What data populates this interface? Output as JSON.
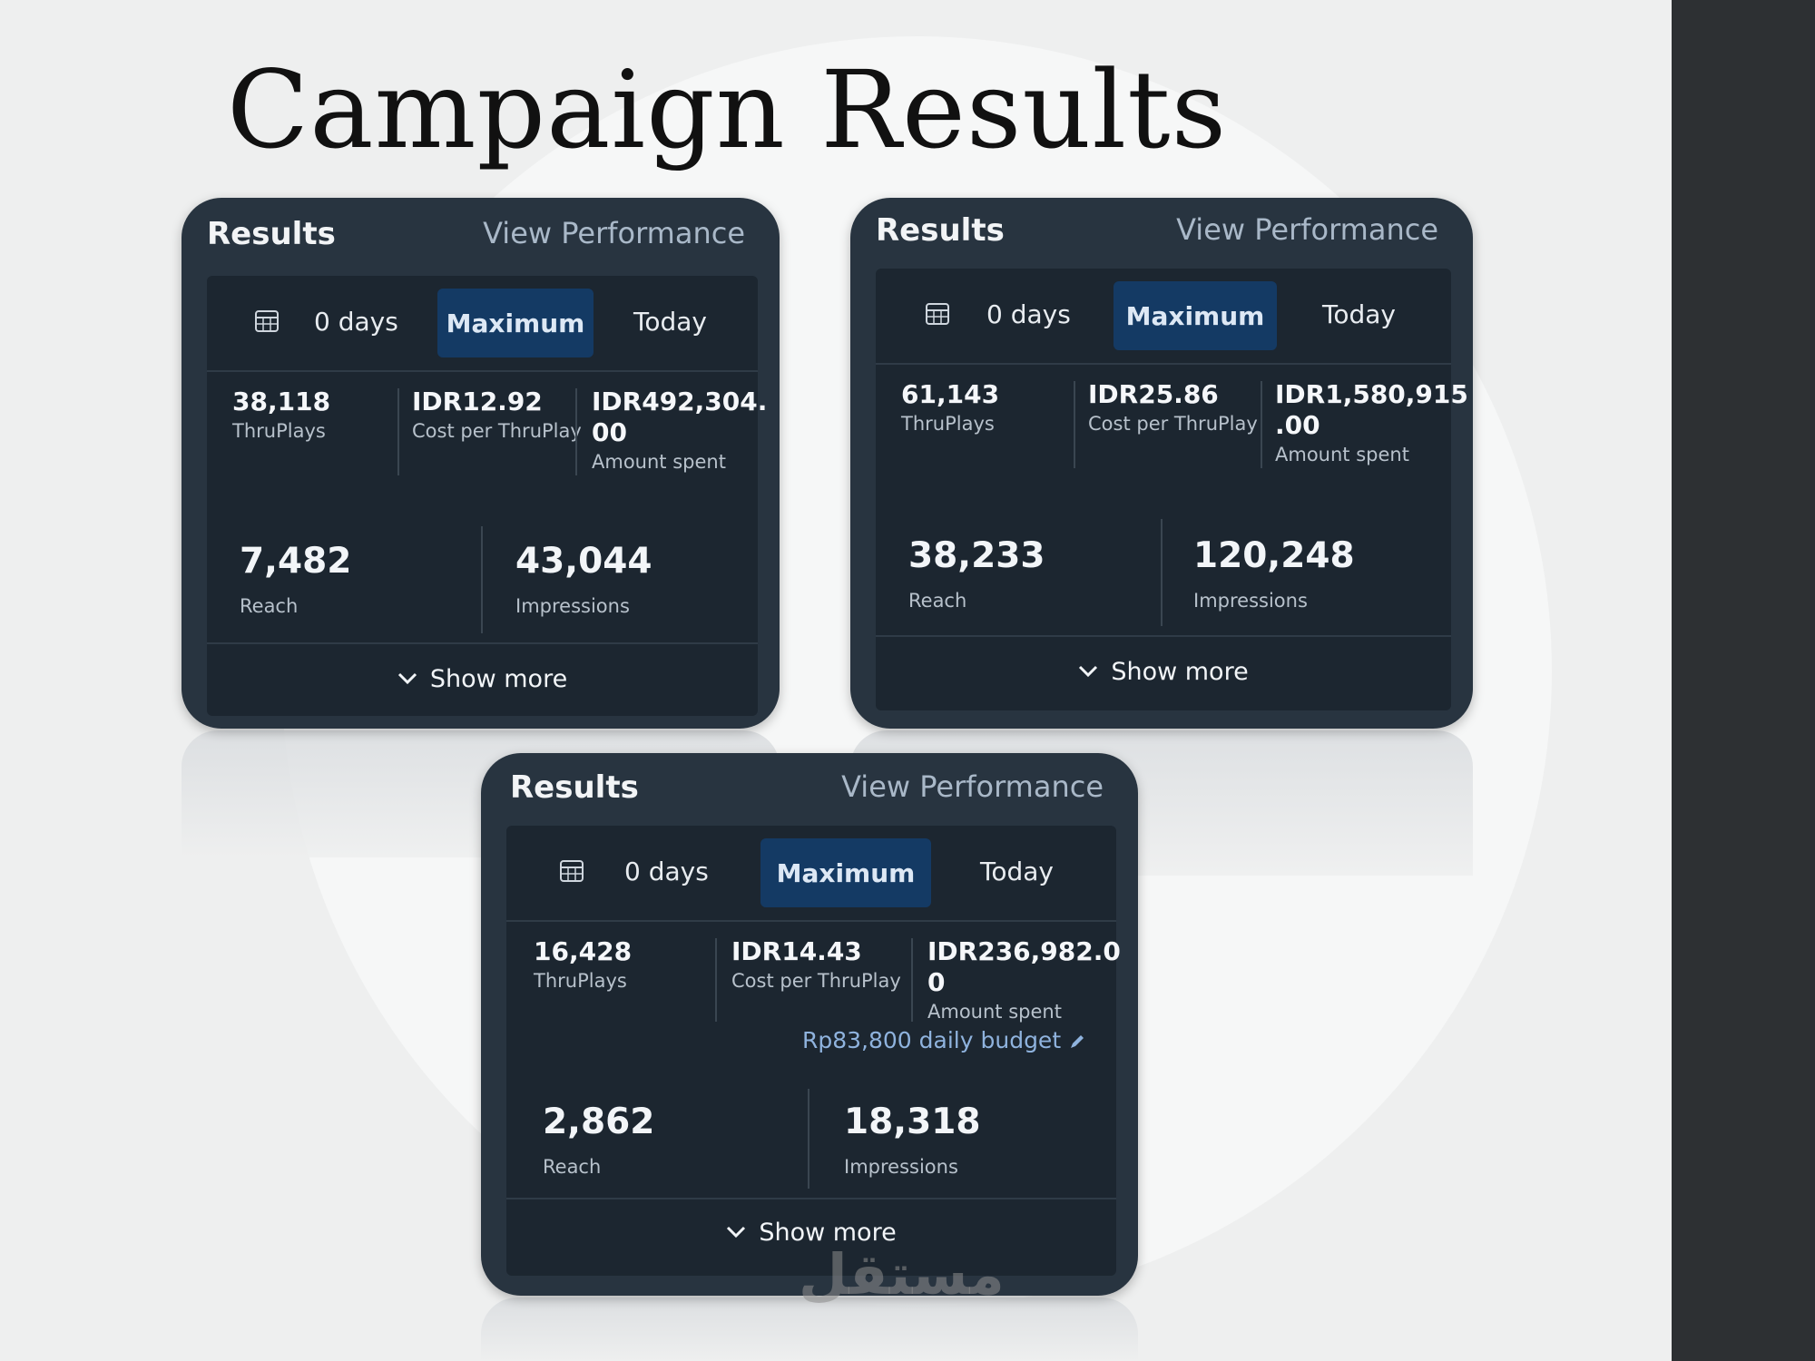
{
  "page": {
    "title": "Campaign Results",
    "watermark": "مستقل"
  },
  "cards": [
    {
      "title": "Results",
      "view_link": "View Performance",
      "filters": {
        "days": "0 days",
        "maximum": "Maximum",
        "today": "Today"
      },
      "thruplays": {
        "value": "38,118",
        "label": "ThruPlays"
      },
      "cost": {
        "value": "IDR12.92",
        "label": "Cost per ThruPlay"
      },
      "amount": {
        "value": "IDR492,304.\n00",
        "label": "Amount spent"
      },
      "reach": {
        "value": "7,482",
        "label": "Reach"
      },
      "impressions": {
        "value": "43,044",
        "label": "Impressions"
      },
      "show_more": "Show more"
    },
    {
      "title": "Results",
      "view_link": "View Performance",
      "filters": {
        "days": "0 days",
        "maximum": "Maximum",
        "today": "Today"
      },
      "thruplays": {
        "value": "61,143",
        "label": "ThruPlays"
      },
      "cost": {
        "value": "IDR25.86",
        "label": "Cost per ThruPlay"
      },
      "amount": {
        "value": "IDR1,580,915\n.00",
        "label": "Amount spent"
      },
      "reach": {
        "value": "38,233",
        "label": "Reach"
      },
      "impressions": {
        "value": "120,248",
        "label": "Impressions"
      },
      "show_more": "Show more"
    },
    {
      "title": "Results",
      "view_link": "View Performance",
      "filters": {
        "days": "0 days",
        "maximum": "Maximum",
        "today": "Today"
      },
      "thruplays": {
        "value": "16,428",
        "label": "ThruPlays"
      },
      "cost": {
        "value": "IDR14.43",
        "label": "Cost per ThruPlay"
      },
      "amount": {
        "value": "IDR236,982.0\n0",
        "label": "Amount spent"
      },
      "budget": "Rp83,800 daily budget",
      "reach": {
        "value": "2,862",
        "label": "Reach"
      },
      "impressions": {
        "value": "18,318",
        "label": "Impressions"
      },
      "show_more": "Show more"
    }
  ],
  "colors": {
    "card_bg": "#283440",
    "inner_bg": "#1c2630",
    "maximum_button": "#143a64",
    "budget_link": "#8fb3de"
  }
}
